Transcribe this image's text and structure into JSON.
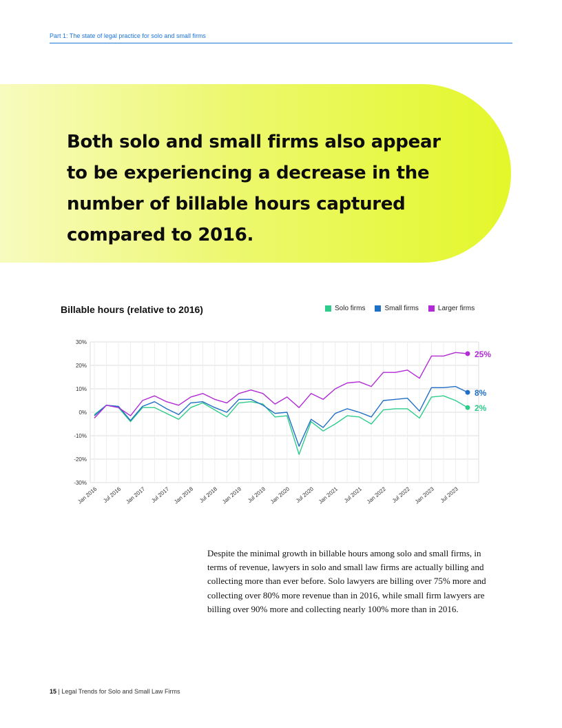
{
  "header": {
    "breadcrumb": "Part 1: The state of legal practice for solo and small firms"
  },
  "hero": {
    "heading": "Both solo and small firms also appear to be experiencing a decrease in the number of billable hours captured compared to 2016."
  },
  "chart_data": {
    "type": "line",
    "title": "Billable hours (relative to 2016)",
    "ylabel": "",
    "xlabel": "",
    "ylim": [
      -30,
      30
    ],
    "yticks": [
      "30%",
      "20%",
      "10%",
      "0%",
      "-10%",
      "-20%",
      "-30%"
    ],
    "xtick_labels": [
      "Jan 2016",
      "Jul 2016",
      "Jan 2017",
      "Jul 2017",
      "Jan 2018",
      "Jul 2018",
      "Jan 2019",
      "Jul 2019",
      "Jan 2020",
      "Jul 2020",
      "Jan 2021",
      "Jul 2021",
      "Jan 2022",
      "Jul 2022",
      "Jan 2023",
      "Jul 2023"
    ],
    "grid": true,
    "legend_position": "top-right",
    "series": [
      {
        "name": "Solo firms",
        "color": "#2ecb8b",
        "end_label": "2%",
        "values": [
          -1,
          3,
          2,
          -4,
          2,
          2,
          -0.5,
          -3,
          2,
          4,
          1,
          -2,
          4,
          4.5,
          3.5,
          -2,
          -1.5,
          -18,
          -4,
          -8,
          -5,
          -1.5,
          -2,
          -5,
          1,
          1.5,
          1.5,
          -2.5,
          6.5,
          7,
          5,
          2
        ]
      },
      {
        "name": "Small firms",
        "color": "#1f6fc5",
        "end_label": "8%",
        "values": [
          -1.5,
          3,
          2.5,
          -3.5,
          2.5,
          4.5,
          1.5,
          -1,
          4,
          4.5,
          2,
          0,
          5.5,
          5.5,
          3,
          -0.5,
          0,
          -14.5,
          -3,
          -6.5,
          -0.5,
          1.5,
          0,
          -2,
          5,
          5.5,
          6,
          0.5,
          10.5,
          10.5,
          11,
          8.5
        ]
      },
      {
        "name": "Larger firms",
        "color": "#b12ad6",
        "end_label": "25%",
        "values": [
          -2.5,
          3,
          2,
          -1.5,
          5,
          7,
          4.5,
          3,
          6.5,
          8,
          5.5,
          4,
          8,
          9.5,
          8,
          3.5,
          6.5,
          2,
          8,
          5.5,
          10,
          12.5,
          13,
          11,
          17,
          17,
          18,
          14.5,
          24,
          24,
          25.5,
          25
        ]
      }
    ]
  },
  "body_text": "Despite the minimal growth in billable hours among solo and small firms, in terms of revenue, lawyers in solo and small law firms are actually billing and collecting more than ever before. Solo lawyers are billing over 75% more and collecting over 80% more revenue than in 2016, while small firm lawyers are billing over 90% more and collecting nearly 100% more than in 2016.",
  "footer": {
    "page_number": "15",
    "separator": "|",
    "document_title": "Legal Trends for Solo and Small Law Firms"
  }
}
